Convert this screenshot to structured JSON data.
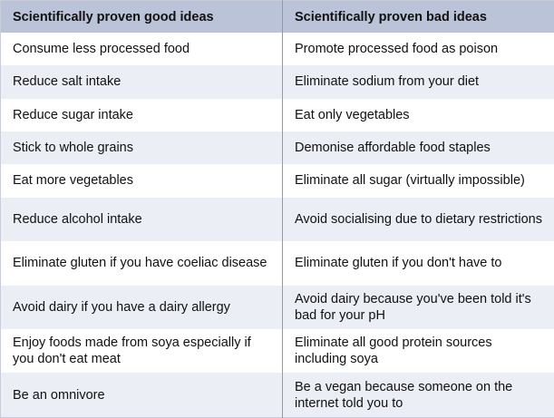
{
  "table": {
    "headers": [
      "Scientifically proven good ideas",
      "Scientifically proven bad ideas"
    ],
    "rows": [
      [
        "Consume less processed food",
        "Promote processed food as poison"
      ],
      [
        "Reduce salt intake",
        "Eliminate sodium from your diet"
      ],
      [
        "Reduce sugar intake",
        "Eat only vegetables"
      ],
      [
        "Stick to whole grains",
        "Demonise affordable food staples"
      ],
      [
        "Eat more vegetables",
        "Eliminate all sugar (virtually impossible)"
      ],
      [
        "Reduce alcohol intake",
        "Avoid socialising due to dietary restrictions"
      ],
      [
        "Eliminate gluten if you have coeliac disease",
        "Eliminate gluten if you don't have to"
      ],
      [
        "Avoid dairy if you have a dairy allergy",
        "Avoid dairy because you've been told it's bad for your pH"
      ],
      [
        "Enjoy foods made from soya especially if you don't eat meat",
        "Eliminate all good protein sources including soya"
      ],
      [
        "Be an omnivore",
        "Be a vegan because someone on the internet told you to"
      ]
    ]
  }
}
